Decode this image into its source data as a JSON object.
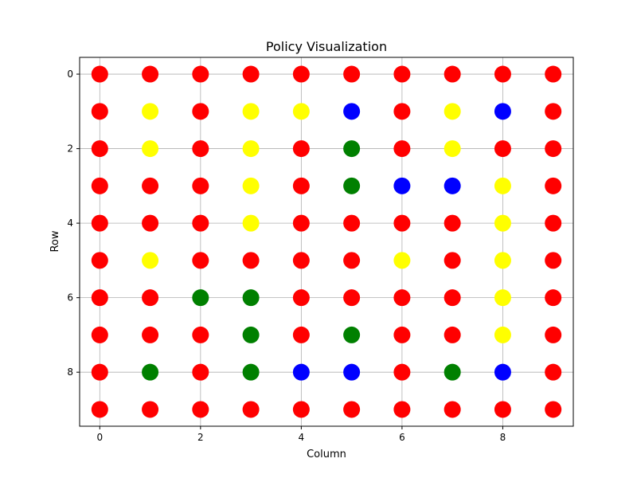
{
  "chart_data": {
    "type": "scatter",
    "title": "Policy Visualization",
    "xlabel": "Column",
    "ylabel": "Row",
    "xlim": [
      -0.4,
      9.4
    ],
    "ylim": [
      9.45,
      -0.45
    ],
    "y_inverted": true,
    "grid": true,
    "xticks": [
      0,
      2,
      4,
      6,
      8
    ],
    "yticks": [
      0,
      2,
      4,
      6,
      8
    ],
    "colors": {
      "R": "#ff0000",
      "Y": "#ffff00",
      "G": "#008000",
      "B": "#0000ff"
    },
    "grid_colors": [
      "RRRRRRRRRR",
      "RYRYYBRYBR",
      "RYRYRGRYRR",
      "RRRYRGBBYR",
      "RRRYRRRRYR",
      "RYRRRRYRYR",
      "RRGGRRRRYR",
      "RRRGRGRRYR",
      "RGRGBBRGBR",
      "RRRRRRRRRR"
    ]
  }
}
